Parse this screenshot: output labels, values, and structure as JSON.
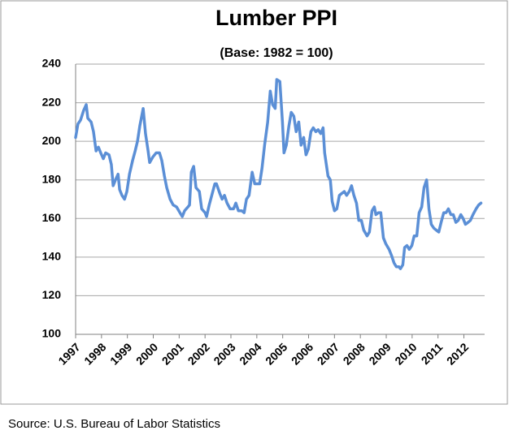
{
  "chart_data": {
    "type": "line",
    "title": "Lumber PPI",
    "subtitle": "(Base: 1982 = 100)",
    "source": "Source: U.S. Bureau of Labor Statistics",
    "xlim": [
      1997,
      2012.8
    ],
    "xticks": [
      1997,
      1998,
      1999,
      2000,
      2001,
      2002,
      2003,
      2004,
      2005,
      2006,
      2007,
      2008,
      2009,
      2010,
      2011,
      2012
    ],
    "ylim": [
      100,
      240
    ],
    "yticks": [
      100,
      120,
      140,
      160,
      180,
      200,
      220,
      240
    ],
    "grid": true,
    "series": [
      {
        "name": "Lumber PPI",
        "color": "#5b8fd6",
        "x": [
          1997.0,
          1997.09,
          1997.19,
          1997.31,
          1997.41,
          1997.47,
          1997.6,
          1997.69,
          1997.79,
          1997.88,
          1997.97,
          1998.07,
          1998.16,
          1998.29,
          1998.38,
          1998.45,
          1998.54,
          1998.64,
          1998.7,
          1998.79,
          1998.89,
          1998.98,
          1999.08,
          1999.2,
          1999.3,
          1999.39,
          1999.48,
          1999.61,
          1999.7,
          1999.8,
          1999.86,
          1999.99,
          2000.11,
          2000.24,
          2000.33,
          2000.43,
          2000.52,
          2000.65,
          2000.77,
          2000.9,
          2001.03,
          2001.12,
          2001.21,
          2001.34,
          2001.4,
          2001.47,
          2001.56,
          2001.65,
          2001.78,
          2001.87,
          2002.0,
          2002.06,
          2002.16,
          2002.28,
          2002.38,
          2002.44,
          2002.57,
          2002.66,
          2002.75,
          2002.85,
          2002.97,
          2003.1,
          2003.19,
          2003.29,
          2003.42,
          2003.51,
          2003.6,
          2003.7,
          2003.82,
          2003.92,
          2004.01,
          2004.11,
          2004.2,
          2004.3,
          2004.42,
          2004.52,
          2004.61,
          2004.71,
          2004.77,
          2004.89,
          2004.99,
          2005.05,
          2005.14,
          2005.24,
          2005.33,
          2005.43,
          2005.52,
          2005.62,
          2005.71,
          2005.81,
          2005.9,
          2005.99,
          2006.09,
          2006.18,
          2006.28,
          2006.37,
          2006.47,
          2006.56,
          2006.62,
          2006.75,
          2006.84,
          2006.91,
          2007.0,
          2007.09,
          2007.19,
          2007.28,
          2007.38,
          2007.47,
          2007.57,
          2007.66,
          2007.75,
          2007.85,
          2007.94,
          2008.04,
          2008.13,
          2008.26,
          2008.35,
          2008.45,
          2008.54,
          2008.6,
          2008.7,
          2008.79,
          2008.89,
          2008.98,
          2009.11,
          2009.2,
          2009.3,
          2009.39,
          2009.49,
          2009.55,
          2009.64,
          2009.71,
          2009.8,
          2009.89,
          2009.99,
          2010.08,
          2010.18,
          2010.27,
          2010.37,
          2010.46,
          2010.56,
          2010.65,
          2010.74,
          2010.84,
          2010.93,
          2011.03,
          2011.12,
          2011.22,
          2011.31,
          2011.4,
          2011.5,
          2011.59,
          2011.69,
          2011.78,
          2011.88,
          2011.97,
          2012.06,
          2012.16,
          2012.25,
          2012.35,
          2012.47,
          2012.57,
          2012.66
        ],
        "values": [
          202,
          209,
          211,
          216,
          219,
          212,
          210,
          205,
          195,
          197,
          194,
          191,
          194,
          193,
          188,
          177,
          180,
          183,
          175,
          172,
          170,
          174,
          183,
          190,
          195,
          200,
          208,
          217,
          204,
          195,
          189,
          192,
          194,
          194,
          190,
          182,
          176,
          170,
          167,
          166,
          163,
          161,
          164,
          166,
          167,
          184,
          187,
          176,
          174,
          165,
          163,
          161,
          167,
          173,
          178,
          178,
          173,
          170,
          172,
          168,
          165,
          165,
          168,
          164,
          164,
          163,
          170,
          172,
          184,
          178,
          178,
          178,
          186,
          198,
          210,
          226,
          219,
          217,
          232,
          231,
          210,
          194,
          198,
          208,
          215,
          213,
          205,
          210,
          198,
          202,
          193,
          196,
          205,
          207,
          205,
          206,
          204,
          207,
          194,
          182,
          180,
          169,
          164,
          165,
          172,
          173,
          174,
          172,
          174,
          177,
          172,
          168,
          159,
          159,
          154,
          151,
          153,
          164,
          166,
          162,
          163,
          163,
          150,
          147,
          144,
          141,
          137,
          135,
          135,
          134,
          136,
          145,
          146,
          144,
          146,
          151,
          151,
          163,
          166,
          176,
          180,
          165,
          157,
          155,
          154,
          153,
          158,
          163,
          163,
          165,
          162,
          162,
          158,
          159,
          162,
          160,
          157,
          158,
          159,
          162,
          165,
          167,
          168
        ]
      }
    ]
  }
}
